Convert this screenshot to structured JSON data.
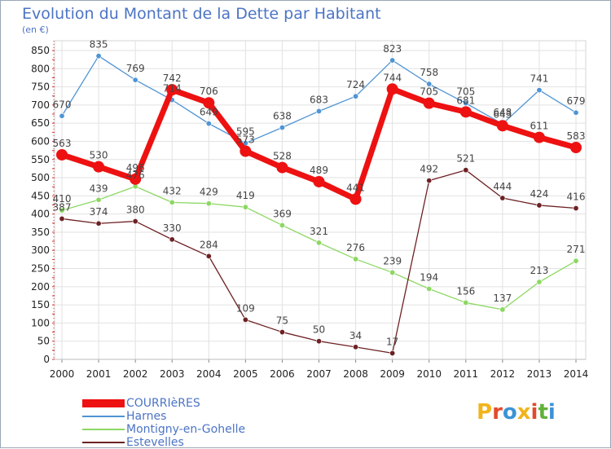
{
  "header": {
    "title": "Evolution du Montant de la Dette par Habitant",
    "unit": "(en €)"
  },
  "logo": {
    "text": "Proxiti",
    "colors": [
      "#f1b41b",
      "#e34a2c",
      "#3c93d6",
      "#f1b41b",
      "#e34a2c",
      "#62b13b",
      "#3c93d6"
    ]
  },
  "chart_data": {
    "type": "line",
    "title": "Evolution du Montant de la Dette par Habitant",
    "ylabel": "(en €)",
    "xlabel": "",
    "x": [
      "2000",
      "2001",
      "2002",
      "2003",
      "2004",
      "2005",
      "2006",
      "2007",
      "2008",
      "2009",
      "2010",
      "2011",
      "2012",
      "2013",
      "2014"
    ],
    "yticks": [
      0,
      50,
      100,
      150,
      200,
      250,
      300,
      350,
      400,
      450,
      500,
      550,
      600,
      650,
      700,
      750,
      800,
      850
    ],
    "ylim": [
      0,
      850
    ],
    "grid": true,
    "legend_position": "bottom-left",
    "series": [
      {
        "name": "COURRIèRES",
        "color": "#ee1111",
        "values": [
          563,
          530,
          496,
          742,
          706,
          573,
          528,
          489,
          441,
          744,
          705,
          681,
          643,
          611,
          583
        ]
      },
      {
        "name": "Harnes",
        "color": "#4f94d4",
        "values": [
          670,
          835,
          769,
          714,
          649,
          595,
          638,
          683,
          724,
          823,
          758,
          705,
          648,
          741,
          679
        ]
      },
      {
        "name": "Montigny-en-Gohelle",
        "color": "#8cd862",
        "values": [
          410,
          439,
          476,
          432,
          429,
          419,
          369,
          321,
          276,
          239,
          194,
          156,
          137,
          213,
          271
        ]
      },
      {
        "name": "Estevelles",
        "color": "#6e2124",
        "values": [
          387,
          374,
          380,
          330,
          284,
          109,
          75,
          50,
          34,
          17,
          492,
          521,
          444,
          424,
          416
        ]
      }
    ]
  }
}
